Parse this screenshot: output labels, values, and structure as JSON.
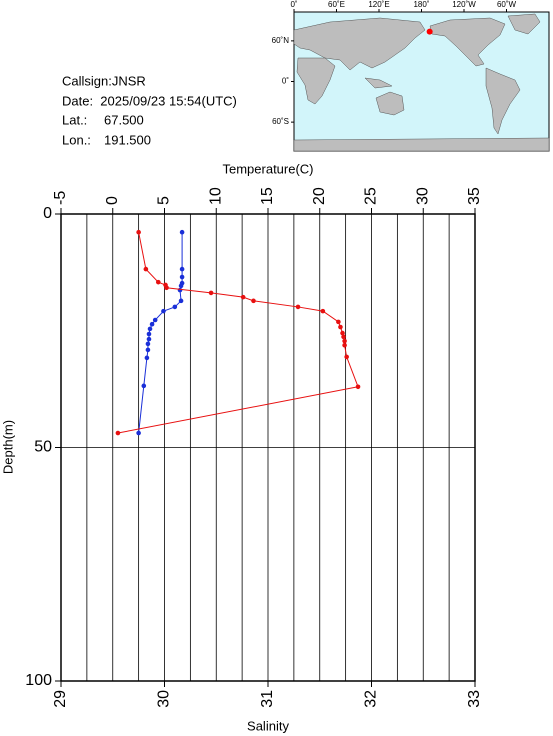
{
  "info": {
    "callsign": "Callsign:JNSR",
    "date": "Date:  2025/09/23 15:54(UTC)",
    "lat_label": "Lat.:",
    "lat": {
      "value": 67.5,
      "label": "67.500"
    },
    "lon_label": "Lon.:",
    "lon": {
      "value": 191.5,
      "label": "191.500"
    }
  },
  "map": {
    "lonlim": [
      0,
      360
    ],
    "latlim": [
      -78,
      78
    ],
    "lon_ticks": [
      {
        "value": 0,
        "label": "0˚"
      },
      {
        "value": 60,
        "label": "60˚E"
      },
      {
        "value": 120,
        "label": "120˚E"
      },
      {
        "value": 180,
        "label": "180˚"
      },
      {
        "value": 240,
        "label": "120˚W"
      },
      {
        "value": 300,
        "label": "60˚W"
      }
    ],
    "lat_ticks": [
      {
        "value": 60,
        "label": "60˚N"
      },
      {
        "value": 0,
        "label": "0˚"
      },
      {
        "value": -60,
        "label": "60˚S"
      }
    ],
    "marker_color": "#ff0000"
  },
  "chart_data": {
    "type": "line",
    "x2label": "Temperature(C)",
    "xlabel": "Salinity",
    "ylabel": "Depth(m)",
    "x2lim": [
      -5,
      35
    ],
    "x2ticks": [
      -5,
      0,
      5,
      10,
      15,
      20,
      25,
      30,
      35
    ],
    "x2grid": [
      -2.5,
      0,
      2.5,
      5,
      7.5,
      10,
      12.5,
      15,
      17.5,
      20,
      22.5,
      25,
      27.5,
      30,
      32.5
    ],
    "xlim": [
      29,
      33
    ],
    "xticks": [
      29,
      30,
      31,
      32,
      33
    ],
    "ylim": [
      0,
      100
    ],
    "yticks": [
      0,
      50,
      100
    ],
    "y_inverted": true,
    "grid": true,
    "series": [
      {
        "color": "#1a2fd8",
        "axis": "x2",
        "depth": [
          3.9,
          11.8,
          13.5,
          14.8,
          15.4,
          16.3,
          18.6,
          19.9,
          20.8,
          22.7,
          23.6,
          24.6,
          25.7,
          26.8,
          27.8,
          29.1,
          30.8,
          36.8,
          46.9
        ],
        "values": [
          6.7,
          6.7,
          6.7,
          6.7,
          6.6,
          6.5,
          6.6,
          6.0,
          4.9,
          4.1,
          3.8,
          3.6,
          3.5,
          3.5,
          3.4,
          3.4,
          3.3,
          3.0,
          2.5
        ]
      },
      {
        "color": "#e81010",
        "axis": "x",
        "depth": [
          3.9,
          11.8,
          14.6,
          15.2,
          15.8,
          16.9,
          17.8,
          18.6,
          19.9,
          20.8,
          23.1,
          24.2,
          25.5,
          26.3,
          27.2,
          28.1,
          30.6,
          37.0,
          46.9
        ],
        "values": [
          29.75,
          29.82,
          29.94,
          30.01,
          30.02,
          30.45,
          30.76,
          30.86,
          31.29,
          31.53,
          31.68,
          31.7,
          31.72,
          31.73,
          31.74,
          31.74,
          31.76,
          31.87,
          29.55
        ]
      }
    ]
  }
}
